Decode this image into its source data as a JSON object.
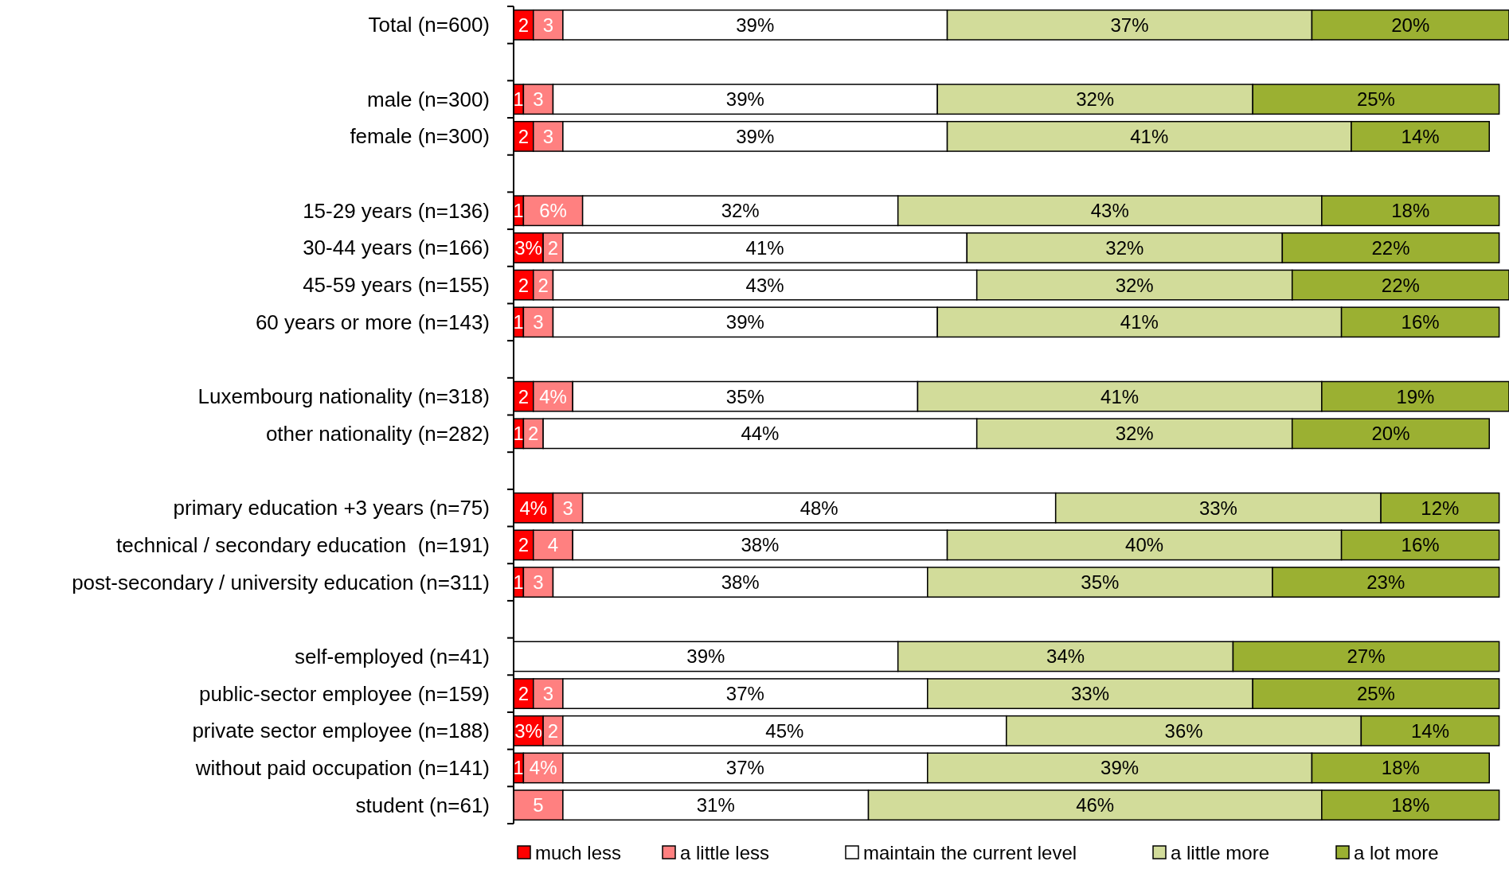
{
  "chart_data": {
    "type": "bar",
    "orientation": "horizontal",
    "stacked": true,
    "legend": "bottom",
    "categories": [
      "Total (n=600)",
      null,
      "male (n=300)",
      "female (n=300)",
      null,
      "15-29 years (n=136)",
      "30-44 years (n=166)",
      "45-59 years (n=155)",
      "60 years or more (n=143)",
      null,
      "Luxembourg nationality (n=318)",
      "other nationality (n=282)",
      null,
      "primary education +3 years (n=75)",
      "technical / secondary education  (n=191)",
      "post-secondary / university education (n=311)",
      null,
      "self-employed (n=41)",
      "public-sector employee (n=159)",
      "private sector employee (n=188)",
      "without paid occupation (n=141)",
      "student (n=61)"
    ],
    "series": [
      {
        "name": "much less",
        "color": "#ff0000",
        "values": [
          2,
          null,
          1,
          2,
          null,
          1,
          3,
          2,
          1,
          null,
          2,
          1,
          null,
          4,
          2,
          1,
          null,
          0,
          2,
          3,
          1,
          0
        ],
        "value_labels": [
          "2",
          null,
          "1",
          "2",
          null,
          "1",
          "3%",
          "2",
          "1",
          null,
          "2",
          "1",
          null,
          "4%",
          "2",
          "1",
          null,
          null,
          "2",
          "3%",
          "1",
          null
        ]
      },
      {
        "name": "a little less",
        "color": "#ff8080",
        "values": [
          3,
          null,
          3,
          3,
          null,
          6,
          2,
          2,
          3,
          null,
          4,
          2,
          null,
          3,
          4,
          3,
          null,
          0,
          3,
          2,
          4,
          5
        ],
        "value_labels": [
          "3",
          null,
          "3",
          "3",
          null,
          "6%",
          "2",
          "2",
          "3",
          null,
          "4%",
          "2",
          null,
          "3",
          "4",
          "3",
          null,
          null,
          "3",
          "2",
          "4%",
          "5"
        ]
      },
      {
        "name": "maintain the current level",
        "color": "#ffffff",
        "values": [
          39,
          null,
          39,
          39,
          null,
          32,
          41,
          43,
          39,
          null,
          35,
          44,
          null,
          48,
          38,
          38,
          null,
          39,
          37,
          45,
          37,
          31
        ],
        "value_labels": [
          "39%",
          null,
          "39%",
          "39%",
          null,
          "32%",
          "41%",
          "43%",
          "39%",
          null,
          "35%",
          "44%",
          null,
          "48%",
          "38%",
          "38%",
          null,
          "39%",
          "37%",
          "45%",
          "37%",
          "31%"
        ]
      },
      {
        "name": "a little more",
        "color": "#d2dc9a",
        "values": [
          37,
          null,
          32,
          41,
          null,
          43,
          32,
          32,
          41,
          null,
          41,
          32,
          null,
          33,
          40,
          35,
          null,
          34,
          33,
          36,
          39,
          46
        ],
        "value_labels": [
          "37%",
          null,
          "32%",
          "41%",
          null,
          "43%",
          "32%",
          "32%",
          "41%",
          null,
          "41%",
          "32%",
          null,
          "33%",
          "40%",
          "35%",
          null,
          "34%",
          "33%",
          "36%",
          "39%",
          "46%"
        ]
      },
      {
        "name": "a lot more",
        "color": "#9bb032",
        "values": [
          20,
          null,
          25,
          14,
          null,
          18,
          22,
          22,
          16,
          null,
          19,
          20,
          null,
          12,
          16,
          23,
          null,
          27,
          25,
          14,
          18,
          18
        ],
        "value_labels": [
          "20%",
          null,
          "25%",
          "14%",
          null,
          "18%",
          "22%",
          "22%",
          "16%",
          null,
          "19%",
          "20%",
          null,
          "12%",
          "16%",
          "23%",
          null,
          "27%",
          "25%",
          "14%",
          "18%",
          "18%"
        ]
      }
    ]
  }
}
